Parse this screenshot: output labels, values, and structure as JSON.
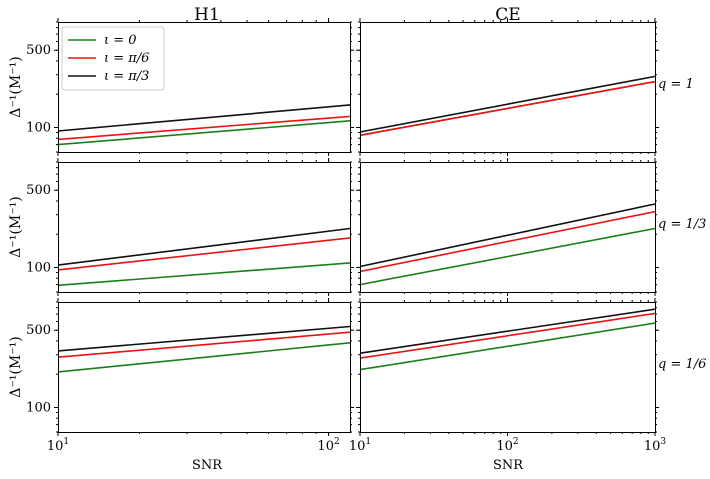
{
  "chart_data": {
    "type": "line",
    "x_scale": "log",
    "y_scale": "log",
    "ylim": [
      60,
      900
    ],
    "yticks": [
      {
        "value": 100,
        "label": "100"
      },
      {
        "value": 500,
        "label": "500"
      }
    ],
    "columns": [
      {
        "title": "H1",
        "xlim": [
          10,
          120
        ],
        "xticks": [
          {
            "value": 10,
            "base": "10",
            "exp": "1"
          },
          {
            "value": 100,
            "base": "10",
            "exp": "2"
          }
        ],
        "xlabel": "SNR"
      },
      {
        "title": "CE",
        "xlim": [
          10,
          1000
        ],
        "xticks": [
          {
            "value": 10,
            "base": "10",
            "exp": "1"
          },
          {
            "value": 100,
            "base": "10",
            "exp": "2"
          },
          {
            "value": 1000,
            "base": "10",
            "exp": "3"
          }
        ],
        "xlabel": "SNR"
      }
    ],
    "rows": [
      {
        "label": "q = 1"
      },
      {
        "label": "q = 1/3"
      },
      {
        "label": "q = 1/6"
      }
    ],
    "ylabel": "Δ⁻¹(M⁻¹)",
    "legend": [
      {
        "label": "ι = 0",
        "color": "#1a7f1a"
      },
      {
        "label": "ι = π/6",
        "color": "#ee1111"
      },
      {
        "label": "ι = π/3",
        "color": "#111111"
      }
    ],
    "legend_position": "top-left",
    "panels": [
      {
        "row": 0,
        "col": 0,
        "series": [
          {
            "name": "ι = 0",
            "x": [
              10,
              120
            ],
            "y": [
              70,
              115
            ]
          },
          {
            "name": "ι = π/6",
            "x": [
              10,
              120
            ],
            "y": [
              78,
              126
            ]
          },
          {
            "name": "ι = π/3",
            "x": [
              10,
              120
            ],
            "y": [
              93,
              160
            ]
          }
        ]
      },
      {
        "row": 0,
        "col": 1,
        "series": [
          {
            "name": "ι = 0",
            "x": [
              10,
              1000
            ],
            "y": [
              85,
              260
            ]
          },
          {
            "name": "ι = π/6",
            "x": [
              10,
              1000
            ],
            "y": [
              85,
              260
            ]
          },
          {
            "name": "ι = π/3",
            "x": [
              10,
              1000
            ],
            "y": [
              91,
              290
            ]
          }
        ]
      },
      {
        "row": 1,
        "col": 0,
        "series": [
          {
            "name": "ι = 0",
            "x": [
              10,
              120
            ],
            "y": [
              69,
              110
            ]
          },
          {
            "name": "ι = π/6",
            "x": [
              10,
              120
            ],
            "y": [
              95,
              185
            ]
          },
          {
            "name": "ι = π/3",
            "x": [
              10,
              120
            ],
            "y": [
              105,
              225
            ]
          }
        ]
      },
      {
        "row": 1,
        "col": 1,
        "series": [
          {
            "name": "ι = 0",
            "x": [
              10,
              1000
            ],
            "y": [
              70,
              225
            ]
          },
          {
            "name": "ι = π/6",
            "x": [
              10,
              1000
            ],
            "y": [
              92,
              320
            ]
          },
          {
            "name": "ι = π/3",
            "x": [
              10,
              1000
            ],
            "y": [
              102,
              375
            ]
          }
        ]
      },
      {
        "row": 2,
        "col": 0,
        "series": [
          {
            "name": "ι = 0",
            "x": [
              10,
              120
            ],
            "y": [
              210,
              385
            ]
          },
          {
            "name": "ι = π/6",
            "x": [
              10,
              120
            ],
            "y": [
              285,
              480
            ]
          },
          {
            "name": "ι = π/3",
            "x": [
              10,
              120
            ],
            "y": [
              325,
              540
            ]
          }
        ]
      },
      {
        "row": 2,
        "col": 1,
        "series": [
          {
            "name": "ι = 0",
            "x": [
              10,
              1000
            ],
            "y": [
              220,
              580
            ]
          },
          {
            "name": "ι = π/6",
            "x": [
              10,
              1000
            ],
            "y": [
              280,
              710
            ]
          },
          {
            "name": "ι = π/3",
            "x": [
              10,
              1000
            ],
            "y": [
              310,
              775
            ]
          }
        ]
      }
    ]
  }
}
